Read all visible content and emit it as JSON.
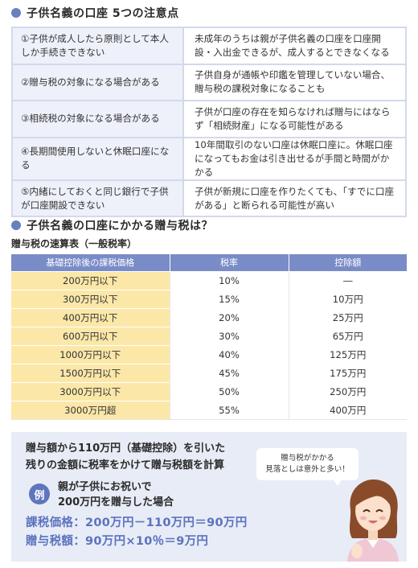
{
  "section1": {
    "title": "子供名義の口座 5つの注意点"
  },
  "cautions": [
    {
      "point": "①子供が成人したら原則として本人しか手続きできない",
      "detail": "未成年のうちは親が子供名義の口座を口座開設・入出金できるが、成人するとできなくなる"
    },
    {
      "point": "②贈与税の対象になる場合がある",
      "detail": "子供自身が通帳や印鑑を管理していない場合、贈与税の課税対象になることも"
    },
    {
      "point": "③相続税の対象になる場合がある",
      "detail": "子供が口座の存在を知らなければ贈与にはならず「相続財産」になる可能性がある"
    },
    {
      "point": "④長期間使用しないと休眠口座になる",
      "detail": "10年間取引のない口座は休眠口座に。休眠口座になってもお金は引き出せるが手間と時間がかかる"
    },
    {
      "point": "⑤内緒にしておくと同じ銀行で子供が口座開設できない",
      "detail": "子供が新規に口座を作りたくても、「すでに口座がある」と断られる可能性が高い"
    }
  ],
  "section2": {
    "title": "子供名義の口座にかかる贈与税は？",
    "subtitle": "贈与税の速算表（一般税率）"
  },
  "tax_table": {
    "headers": [
      "基礎控除後の課税価格",
      "税率",
      "控除額"
    ],
    "rows": [
      [
        "200万円以下",
        "10%",
        "―"
      ],
      [
        "300万円以下",
        "15%",
        "10万円"
      ],
      [
        "400万円以下",
        "20%",
        "25万円"
      ],
      [
        "600万円以下",
        "30%",
        "65万円"
      ],
      [
        "1000万円以下",
        "40%",
        "125万円"
      ],
      [
        "1500万円以下",
        "45%",
        "175万円"
      ],
      [
        "3000万円以下",
        "50%",
        "250万円"
      ],
      [
        "3000万円超",
        "55%",
        "400万円"
      ]
    ]
  },
  "example": {
    "intro_lines": [
      "贈与額から110万円（基礎控除）を引いた",
      "残りの金額に税率をかけて贈与税額を計算"
    ],
    "badge": "例",
    "case_lines": [
      "親が子供にお祝いで",
      "200万円を贈与した場合"
    ],
    "calc1": "課税価格：200万円－110万円＝90万円",
    "calc2": "贈与税額：90万円×10％＝9万円",
    "bubble_lines": [
      "贈与税がかかる",
      "見落としは意外と多い！"
    ]
  },
  "colors": {
    "accent": "#6a7fc0",
    "header_bg": "#7a8cc7",
    "amount_bg": "#fbe7a8",
    "calc_text": "#5a73bf",
    "box_bg": "#e8ecf6"
  }
}
